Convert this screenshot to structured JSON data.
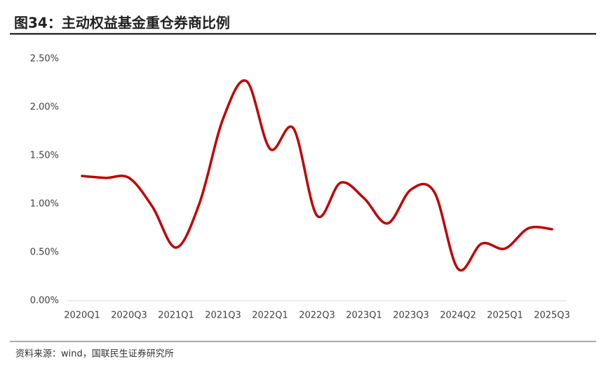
{
  "title": "图34：主动权益基金重仓券商比例",
  "source": "资料来源：wind，国联民生证券研究所",
  "chart_data": {
    "type": "line",
    "categories": [
      "2020Q1",
      null,
      "2020Q3",
      null,
      "2021Q1",
      null,
      "2021Q3",
      null,
      "2022Q1",
      null,
      "2022Q3",
      null,
      "2023Q1",
      null,
      "2023Q3",
      null,
      "2024Q2",
      null,
      "2025Q1",
      null,
      "2025Q3"
    ],
    "series": [
      {
        "color": "#c00000",
        "values": [
          1.29,
          1.27,
          1.27,
          0.97,
          0.55,
          1.01,
          1.88,
          2.27,
          1.57,
          1.78,
          0.88,
          1.22,
          1.06,
          0.8,
          1.15,
          1.12,
          0.33,
          0.59,
          0.54,
          0.75,
          0.74
        ]
      }
    ],
    "ylim": [
      0,
      2.5
    ],
    "yticks": [
      {
        "value": 0,
        "label": "0.00%"
      },
      {
        "value": 0.5,
        "label": "0.50%"
      },
      {
        "value": 1,
        "label": "1.00%"
      },
      {
        "value": 1.5,
        "label": "1.50%"
      },
      {
        "value": 2,
        "label": "2.00%"
      },
      {
        "value": 2.5,
        "label": "2.50%"
      }
    ],
    "grid": false
  }
}
